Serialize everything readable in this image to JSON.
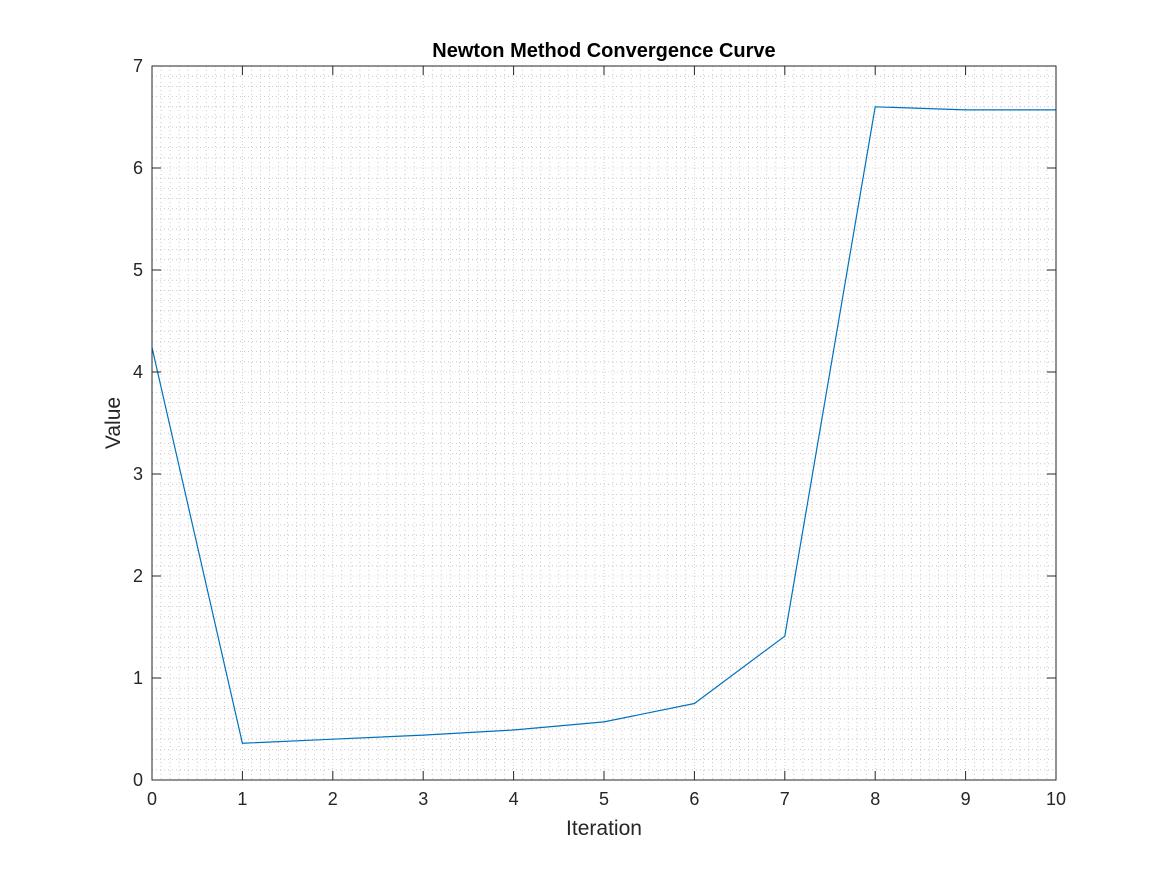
{
  "chart_data": {
    "type": "line",
    "title": "Newton Method Convergence Curve",
    "xlabel": "Iteration",
    "ylabel": "Value",
    "xlim": [
      0,
      10
    ],
    "ylim": [
      0,
      7
    ],
    "xticks": [
      0,
      1,
      2,
      3,
      4,
      5,
      6,
      7,
      8,
      9,
      10
    ],
    "yticks": [
      0,
      1,
      2,
      3,
      4,
      5,
      6,
      7
    ],
    "grid": true,
    "minor_grid": true,
    "line_color": "#0072BD",
    "axis_color": "#262626",
    "series": [
      {
        "x": [
          0,
          1,
          2,
          3,
          4,
          5,
          6,
          7,
          8,
          9,
          10
        ],
        "y": [
          4.24,
          0.36,
          0.4,
          0.44,
          0.49,
          0.57,
          0.75,
          1.41,
          6.6,
          6.57,
          6.57
        ]
      }
    ]
  }
}
